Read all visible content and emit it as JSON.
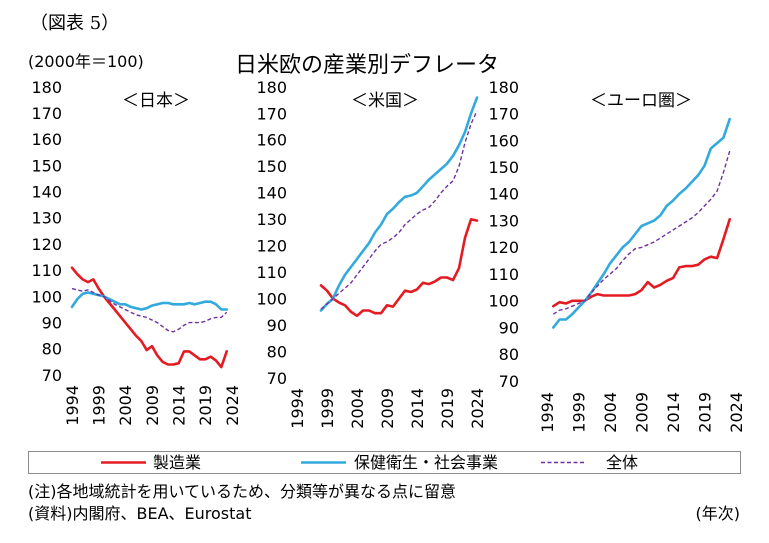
{
  "figure_label": "（図表 5）",
  "title": "日米欧の産業別デフレータ",
  "ylabel": "(2000年＝100)",
  "xlabel": "(年次)",
  "notes": {
    "note": "(注)各地域統計を用いているため、分類等が異なる点に留意",
    "source": "(資料)内閣府、BEA、Eurostat"
  },
  "chart_data": [
    {
      "type": "line",
      "title": "＜日本＞",
      "xlim": [
        1994,
        2024
      ],
      "xticks": [
        1994,
        1999,
        2004,
        2009,
        2014,
        2019,
        2024
      ],
      "ylim": [
        70,
        180
      ],
      "yticks": [
        70,
        80,
        90,
        100,
        110,
        120,
        130,
        140,
        150,
        160,
        170,
        180
      ],
      "grid": false,
      "legend": "bottom",
      "x": [
        1994,
        1995,
        1996,
        1997,
        1998,
        1999,
        2000,
        2001,
        2002,
        2003,
        2004,
        2005,
        2006,
        2007,
        2008,
        2009,
        2010,
        2011,
        2012,
        2013,
        2014,
        2015,
        2016,
        2017,
        2018,
        2019,
        2020,
        2021,
        2022,
        2023
      ],
      "series": [
        {
          "name": "製造業",
          "color": "#e31b23",
          "dash": "solid",
          "values": [
            111,
            108.5,
            106.5,
            105.5,
            106.5,
            103,
            100,
            97.5,
            95,
            92.5,
            90,
            87.5,
            85,
            83,
            79.5,
            81,
            77.5,
            75,
            74,
            74,
            74.5,
            79,
            79,
            77.5,
            76,
            76,
            77,
            75.5,
            73,
            79
          ]
        },
        {
          "name": "保健衛生・社会事業",
          "color": "#33aadd",
          "dash": "solid",
          "values": [
            96,
            99,
            101,
            101.5,
            101,
            100.5,
            100,
            99,
            98,
            97,
            97,
            96,
            95.5,
            95,
            95.5,
            96.5,
            97,
            97.5,
            97.5,
            97,
            97,
            97,
            97.5,
            97,
            97.5,
            98,
            98,
            97,
            95,
            95
          ]
        },
        {
          "name": "全体",
          "color": "#7030a0",
          "dash": "dashed",
          "values": [
            103,
            102.5,
            102,
            102.5,
            101.5,
            100.5,
            100,
            98.5,
            97,
            96,
            95,
            94,
            93,
            92.5,
            92,
            91,
            90,
            88.5,
            87,
            86.5,
            87.5,
            89,
            90,
            90,
            90,
            90.5,
            91.5,
            92,
            92,
            94
          ]
        }
      ]
    },
    {
      "type": "line",
      "title": "＜米国＞",
      "xlim": [
        1994,
        2024
      ],
      "xticks": [
        1994,
        1999,
        2004,
        2009,
        2014,
        2019,
        2024
      ],
      "ylim": [
        70,
        180
      ],
      "yticks": [
        70,
        80,
        90,
        100,
        110,
        120,
        130,
        140,
        150,
        160,
        170,
        180
      ],
      "grid": false,
      "legend": "bottom",
      "x": [
        1998,
        1999,
        2000,
        2001,
        2002,
        2003,
        2004,
        2005,
        2006,
        2007,
        2008,
        2009,
        2010,
        2011,
        2012,
        2013,
        2014,
        2015,
        2016,
        2017,
        2018,
        2019,
        2020,
        2021,
        2022,
        2023,
        2024
      ],
      "series": [
        {
          "name": "製造業",
          "color": "#e31b23",
          "dash": "solid",
          "values": [
            105,
            103,
            100,
            98.5,
            97.5,
            95,
            93.5,
            95.5,
            95.5,
            94.5,
            94.5,
            97.5,
            97,
            100,
            103,
            102.5,
            103.5,
            106,
            105.5,
            106.5,
            108,
            108,
            107,
            111.5,
            123,
            130,
            129.5
          ]
        },
        {
          "name": "保健衛生・社会事業",
          "color": "#33aadd",
          "dash": "solid",
          "values": [
            95.5,
            98,
            100,
            105,
            109,
            112,
            115,
            118,
            121,
            125,
            128,
            132,
            134,
            136.5,
            138.5,
            139,
            140,
            142.5,
            145,
            147,
            149,
            151,
            154,
            158,
            163,
            170,
            176
          ]
        },
        {
          "name": "全体",
          "color": "#7030a0",
          "dash": "dashed",
          "values": [
            96,
            98,
            100,
            102,
            104,
            106,
            109,
            112,
            115,
            118,
            120.5,
            121.5,
            123,
            125,
            128,
            130,
            132,
            133.5,
            134.5,
            137,
            140,
            142.5,
            144.5,
            150,
            159,
            166,
            171
          ]
        }
      ]
    },
    {
      "type": "line",
      "title": "＜ユーロ圏＞",
      "xlim": [
        1994,
        2024
      ],
      "xticks": [
        1994,
        1999,
        2004,
        2009,
        2014,
        2019,
        2024
      ],
      "ylim": [
        70,
        180
      ],
      "yticks": [
        70,
        80,
        90,
        100,
        110,
        120,
        130,
        140,
        150,
        160,
        170,
        180
      ],
      "grid": false,
      "legend": "bottom",
      "x": [
        1995,
        1996,
        1997,
        1998,
        1999,
        2000,
        2001,
        2002,
        2003,
        2004,
        2005,
        2006,
        2007,
        2008,
        2009,
        2010,
        2011,
        2012,
        2013,
        2014,
        2015,
        2016,
        2017,
        2018,
        2019,
        2020,
        2021,
        2022,
        2023
      ],
      "series": [
        {
          "name": "製造業",
          "color": "#e31b23",
          "dash": "solid",
          "values": [
            98,
            99.5,
            99,
            100,
            100,
            100,
            101.5,
            102.5,
            102,
            102,
            102,
            102,
            102,
            102.5,
            104,
            107,
            105,
            106,
            107.5,
            108.5,
            112.5,
            113,
            113,
            113.5,
            115.5,
            116.5,
            116,
            123,
            130.5
          ]
        },
        {
          "name": "保健衛生・社会事業",
          "color": "#33aadd",
          "dash": "solid",
          "values": [
            90,
            93,
            93,
            95,
            97.5,
            100,
            103,
            106.5,
            110,
            114,
            117,
            120,
            122,
            125,
            128,
            129,
            130,
            132,
            135.5,
            137.5,
            140,
            142,
            144.5,
            147,
            150.5,
            157,
            159,
            161,
            168
          ]
        },
        {
          "name": "全体",
          "color": "#7030a0",
          "dash": "dashed",
          "values": [
            95,
            96.5,
            97,
            98,
            99,
            100,
            103,
            105.5,
            108,
            110,
            112,
            115,
            117.5,
            119.5,
            120,
            121,
            122,
            123.5,
            125,
            126.5,
            128,
            129.5,
            131,
            133,
            135.5,
            138,
            141,
            148,
            156
          ]
        }
      ]
    }
  ]
}
